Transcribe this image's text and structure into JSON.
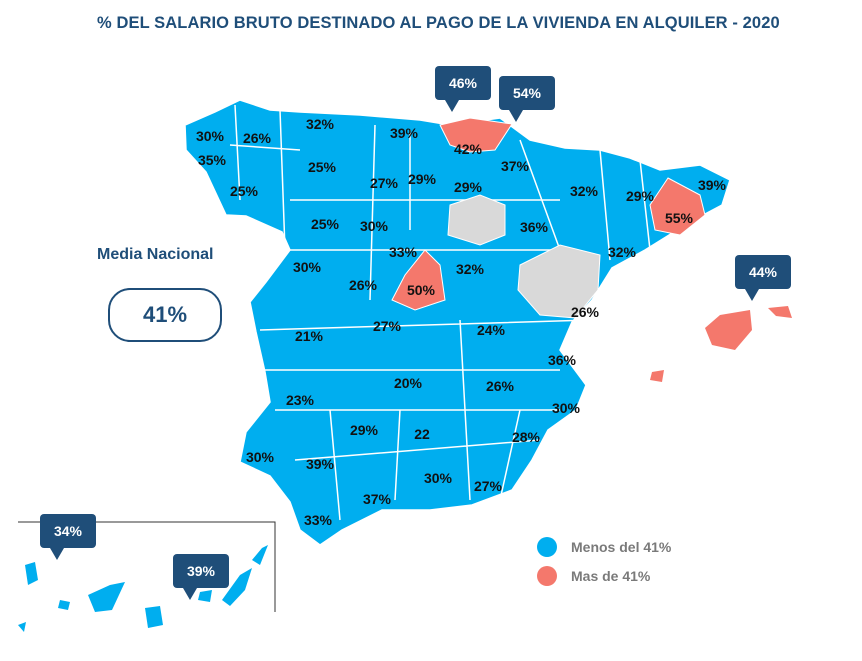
{
  "title": "% DEL SALARIO BRUTO DESTINADO AL PAGO DE LA VIVIENDA EN ALQUILER - 2020",
  "media_nacional": {
    "label": "Media Nacional",
    "value": "41%"
  },
  "legend": [
    {
      "label": "Menos del 41%",
      "color": "#00aeef"
    },
    {
      "label": "Mas de 41%",
      "color": "#f4786c"
    }
  ],
  "colors": {
    "below": "#00aeef",
    "above": "#f4786c",
    "no_data": "#d9d9d9",
    "callout": "#1f4e79"
  },
  "provinces": [
    "30%",
    "26%",
    "32%",
    "39%",
    "42%",
    "35%",
    "25%",
    "25%",
    "27%",
    "29%",
    "29%",
    "37%",
    "32%",
    "29%",
    "39%",
    "25%",
    "30%",
    "36%",
    "55%",
    "33%",
    "32%",
    "32%",
    "30%",
    "26%",
    "50%",
    "26%",
    "21%",
    "27%",
    "24%",
    "36%",
    "20%",
    "26%",
    "23%",
    "30%",
    "29%",
    "22",
    "28%",
    "30%",
    "39%",
    "30%",
    "27%",
    "37%",
    "33%"
  ],
  "callouts": [
    "46%",
    "54%",
    "44%",
    "34%",
    "39%"
  ]
}
